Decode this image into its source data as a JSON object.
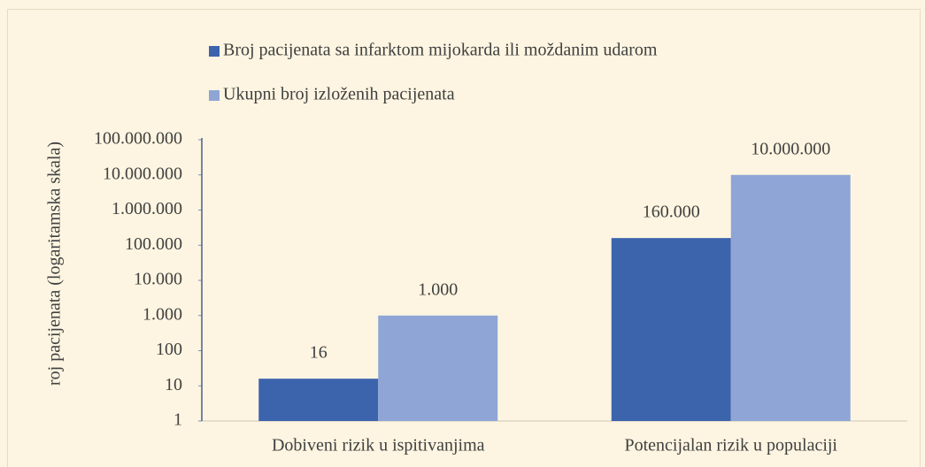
{
  "chart_data": {
    "type": "bar",
    "y_label": "roj pacijenata (logaritamska skala)",
    "categories": [
      "Dobiveni rizik u ispitivanjima",
      "Potencijalan rizik u populaciji"
    ],
    "series": [
      {
        "name": "Broj pacijenata sa infarktom mijokarda ili moždanim udarom",
        "color": "#3c64ad",
        "values": [
          16,
          160000
        ],
        "value_labels": [
          "16",
          "160.000"
        ]
      },
      {
        "name": "Ukupni broj izloženih pacijenata",
        "color": "#8fa5d6",
        "values": [
          1000,
          10000000
        ],
        "value_labels": [
          "1.000",
          "10.000.000"
        ]
      }
    ],
    "log_scale": true,
    "ylim": [
      1,
      100000000
    ],
    "yticks": [
      1,
      10,
      100,
      {
        "value": 1000,
        "label": "1.000"
      },
      {
        "value": 10000,
        "label": "10.000"
      },
      {
        "value": 100000,
        "label": "100.000"
      },
      {
        "value": 1000000,
        "label": "1.000.000"
      },
      {
        "value": 10000000,
        "label": "10.000.000"
      },
      {
        "value": 100000000,
        "label": "100.000.000"
      }
    ],
    "legend": "top"
  }
}
